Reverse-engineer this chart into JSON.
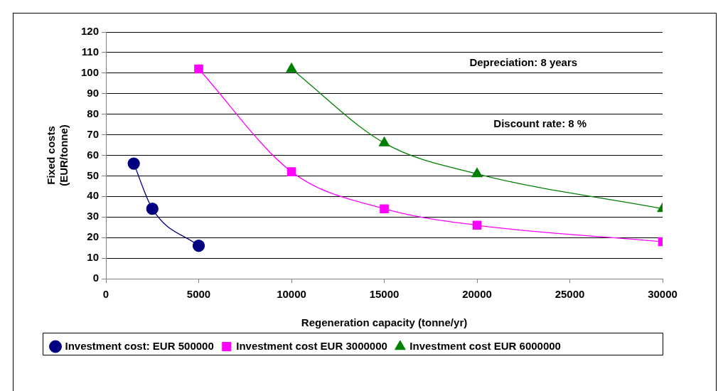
{
  "chart_data": {
    "type": "line",
    "xlabel": "Regeneration capacity (tonne/yr)",
    "ylabel": "Fixed costs\n(EUR/tonne)",
    "series": [
      {
        "name": "Investment cost: EUR 500000",
        "color": "#000080",
        "marker": "circle",
        "x": [
          1500,
          2500,
          5000
        ],
        "values": [
          56,
          34,
          16
        ]
      },
      {
        "name": "Investment cost EUR 3000000",
        "color": "#ff00ff",
        "marker": "square",
        "x": [
          5000,
          10000,
          15000,
          20000,
          30000
        ],
        "values": [
          102,
          52,
          34,
          26,
          18
        ]
      },
      {
        "name": "Investment cost EUR 6000000",
        "color": "#008000",
        "marker": "triangle",
        "x": [
          10000,
          15000,
          20000,
          30000
        ],
        "values": [
          102,
          66,
          51,
          34
        ]
      }
    ],
    "xlim": [
      0,
      30000
    ],
    "xticks": [
      0,
      5000,
      10000,
      15000,
      20000,
      25000,
      30000
    ],
    "ylim": [
      0,
      120
    ],
    "yticks": [
      0,
      10,
      20,
      30,
      40,
      50,
      60,
      70,
      80,
      90,
      100,
      110,
      120
    ],
    "annotations": [
      "Depreciation: 8 years",
      "Discount rate: 8 %"
    ],
    "grid": "y",
    "legend": "bottom"
  }
}
